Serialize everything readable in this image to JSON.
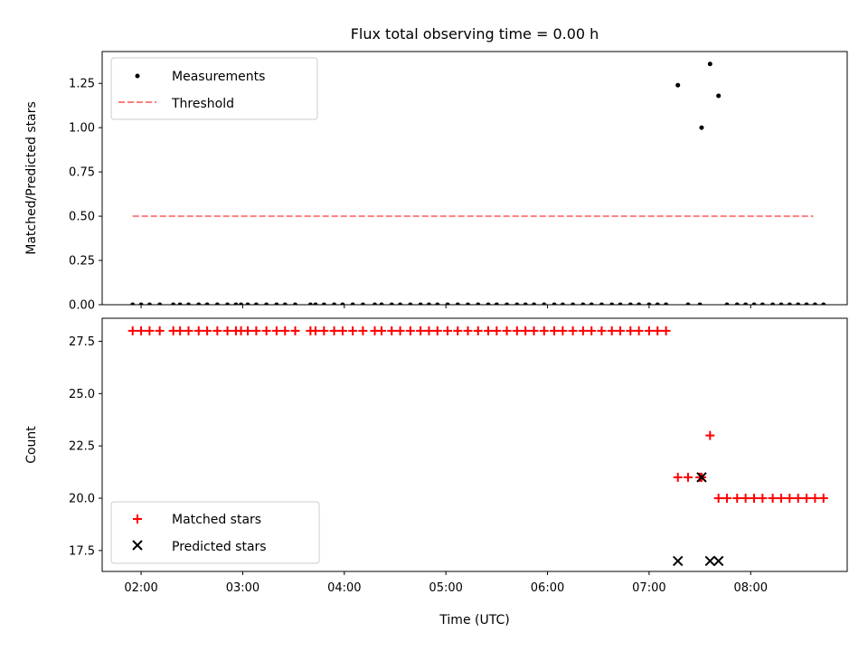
{
  "chart_data": [
    {
      "type": "scatter",
      "title": "Flux total observing time = 0.00 h",
      "ylabel": "Matched/Predicted stars",
      "xlabel": "",
      "xlim": [
        "01:37",
        "08:57"
      ],
      "ylim": [
        0,
        1.43
      ],
      "yticks": [
        "0.00",
        "0.25",
        "0.50",
        "0.75",
        "1.00",
        "1.25"
      ],
      "ytick_values": [
        0,
        0.25,
        0.5,
        0.75,
        1.0,
        1.25
      ],
      "xtick_values": [
        "02:00",
        "03:00",
        "04:00",
        "05:00",
        "06:00",
        "07:00",
        "08:00"
      ],
      "legend_position": "top-left",
      "series": [
        {
          "name": "Measurements",
          "kind": "scatter",
          "color": "#000000",
          "points": [
            [
              "01:55",
              0
            ],
            [
              "02:00",
              0
            ],
            [
              "02:05",
              0
            ],
            [
              "02:11",
              0
            ],
            [
              "02:19",
              0
            ],
            [
              "02:23",
              0
            ],
            [
              "02:28",
              0
            ],
            [
              "02:34",
              0
            ],
            [
              "02:39",
              0
            ],
            [
              "02:45",
              0
            ],
            [
              "02:51",
              0
            ],
            [
              "02:56",
              0
            ],
            [
              "02:59",
              0
            ],
            [
              "03:03",
              0
            ],
            [
              "03:08",
              0
            ],
            [
              "03:14",
              0
            ],
            [
              "03:20",
              0
            ],
            [
              "03:25",
              0
            ],
            [
              "03:31",
              0
            ],
            [
              "03:40",
              0
            ],
            [
              "03:43",
              0
            ],
            [
              "03:48",
              0
            ],
            [
              "03:54",
              0
            ],
            [
              "03:59",
              0
            ],
            [
              "04:05",
              0
            ],
            [
              "04:11",
              0
            ],
            [
              "04:18",
              0
            ],
            [
              "04:22",
              0
            ],
            [
              "04:28",
              0
            ],
            [
              "04:33",
              0
            ],
            [
              "04:39",
              0
            ],
            [
              "04:45",
              0
            ],
            [
              "04:50",
              0
            ],
            [
              "04:55",
              0
            ],
            [
              "05:01",
              0
            ],
            [
              "05:07",
              0
            ],
            [
              "05:13",
              0
            ],
            [
              "05:19",
              0
            ],
            [
              "05:25",
              0
            ],
            [
              "05:30",
              0
            ],
            [
              "05:36",
              0
            ],
            [
              "05:42",
              0
            ],
            [
              "05:47",
              0
            ],
            [
              "05:52",
              0
            ],
            [
              "05:58",
              0
            ],
            [
              "06:04",
              0
            ],
            [
              "06:09",
              0
            ],
            [
              "06:15",
              0
            ],
            [
              "06:21",
              0
            ],
            [
              "06:26",
              0
            ],
            [
              "06:32",
              0
            ],
            [
              "06:38",
              0
            ],
            [
              "06:43",
              0
            ],
            [
              "06:49",
              0
            ],
            [
              "06:54",
              0
            ],
            [
              "07:00",
              0
            ],
            [
              "07:05",
              0
            ],
            [
              "07:10",
              0
            ],
            [
              "07:17",
              1.24
            ],
            [
              "07:23",
              0
            ],
            [
              "07:30",
              0
            ],
            [
              "07:31",
              1.0
            ],
            [
              "07:36",
              1.36
            ],
            [
              "07:41",
              1.18
            ],
            [
              "07:46",
              0
            ],
            [
              "07:52",
              0
            ],
            [
              "07:57",
              0
            ],
            [
              "08:02",
              0
            ],
            [
              "08:07",
              0
            ],
            [
              "08:13",
              0
            ],
            [
              "08:18",
              0
            ],
            [
              "08:23",
              0
            ],
            [
              "08:28",
              0
            ],
            [
              "08:33",
              0
            ],
            [
              "08:38",
              0
            ],
            [
              "08:43",
              0
            ]
          ]
        },
        {
          "name": "Threshold",
          "kind": "line",
          "color": "#ff7f7f",
          "style": "dashed",
          "points": [
            [
              "01:55",
              0.5
            ],
            [
              "08:37",
              0.5
            ]
          ]
        }
      ]
    },
    {
      "type": "scatter",
      "title": "",
      "ylabel": "Count",
      "xlabel": "Time (UTC)",
      "xlim": [
        "01:37",
        "08:57"
      ],
      "ylim": [
        16.5,
        28.6
      ],
      "yticks": [
        "17.5",
        "20.0",
        "22.5",
        "25.0",
        "27.5"
      ],
      "ytick_values": [
        17.5,
        20.0,
        22.5,
        25.0,
        27.5
      ],
      "xticks": [
        "02:00",
        "03:00",
        "04:00",
        "05:00",
        "06:00",
        "07:00",
        "08:00"
      ],
      "xtick_values": [
        "02:00",
        "03:00",
        "04:00",
        "05:00",
        "06:00",
        "07:00",
        "08:00"
      ],
      "legend_position": "bottom-left",
      "series": [
        {
          "name": "Matched stars",
          "kind": "plus",
          "color": "#ff0000",
          "points": [
            [
              "01:55",
              28
            ],
            [
              "02:00",
              28
            ],
            [
              "02:05",
              28
            ],
            [
              "02:11",
              28
            ],
            [
              "02:19",
              28
            ],
            [
              "02:23",
              28
            ],
            [
              "02:28",
              28
            ],
            [
              "02:34",
              28
            ],
            [
              "02:39",
              28
            ],
            [
              "02:45",
              28
            ],
            [
              "02:51",
              28
            ],
            [
              "02:56",
              28
            ],
            [
              "02:59",
              28
            ],
            [
              "03:03",
              28
            ],
            [
              "03:08",
              28
            ],
            [
              "03:14",
              28
            ],
            [
              "03:20",
              28
            ],
            [
              "03:25",
              28
            ],
            [
              "03:31",
              28
            ],
            [
              "03:40",
              28
            ],
            [
              "03:43",
              28
            ],
            [
              "03:48",
              28
            ],
            [
              "03:54",
              28
            ],
            [
              "03:59",
              28
            ],
            [
              "04:05",
              28
            ],
            [
              "04:11",
              28
            ],
            [
              "04:18",
              28
            ],
            [
              "04:22",
              28
            ],
            [
              "04:28",
              28
            ],
            [
              "04:33",
              28
            ],
            [
              "04:39",
              28
            ],
            [
              "04:45",
              28
            ],
            [
              "04:50",
              28
            ],
            [
              "04:55",
              28
            ],
            [
              "05:01",
              28
            ],
            [
              "05:07",
              28
            ],
            [
              "05:13",
              28
            ],
            [
              "05:19",
              28
            ],
            [
              "05:25",
              28
            ],
            [
              "05:30",
              28
            ],
            [
              "05:36",
              28
            ],
            [
              "05:42",
              28
            ],
            [
              "05:47",
              28
            ],
            [
              "05:52",
              28
            ],
            [
              "05:58",
              28
            ],
            [
              "06:04",
              28
            ],
            [
              "06:09",
              28
            ],
            [
              "06:15",
              28
            ],
            [
              "06:21",
              28
            ],
            [
              "06:26",
              28
            ],
            [
              "06:32",
              28
            ],
            [
              "06:38",
              28
            ],
            [
              "06:43",
              28
            ],
            [
              "06:49",
              28
            ],
            [
              "06:54",
              28
            ],
            [
              "07:00",
              28
            ],
            [
              "07:05",
              28
            ],
            [
              "07:10",
              28
            ],
            [
              "07:17",
              21
            ],
            [
              "07:23",
              21
            ],
            [
              "07:30",
              21
            ],
            [
              "07:31",
              21
            ],
            [
              "07:36",
              23
            ],
            [
              "07:41",
              20
            ],
            [
              "07:46",
              20
            ],
            [
              "07:52",
              20
            ],
            [
              "07:57",
              20
            ],
            [
              "08:02",
              20
            ],
            [
              "08:07",
              20
            ],
            [
              "08:13",
              20
            ],
            [
              "08:18",
              20
            ],
            [
              "08:23",
              20
            ],
            [
              "08:28",
              20
            ],
            [
              "08:33",
              20
            ],
            [
              "08:38",
              20
            ],
            [
              "08:43",
              20
            ]
          ]
        },
        {
          "name": "Predicted stars",
          "kind": "x",
          "color": "#000000",
          "points": [
            [
              "07:17",
              17
            ],
            [
              "07:31",
              21
            ],
            [
              "07:36",
              17
            ],
            [
              "07:41",
              17
            ]
          ]
        }
      ]
    }
  ]
}
